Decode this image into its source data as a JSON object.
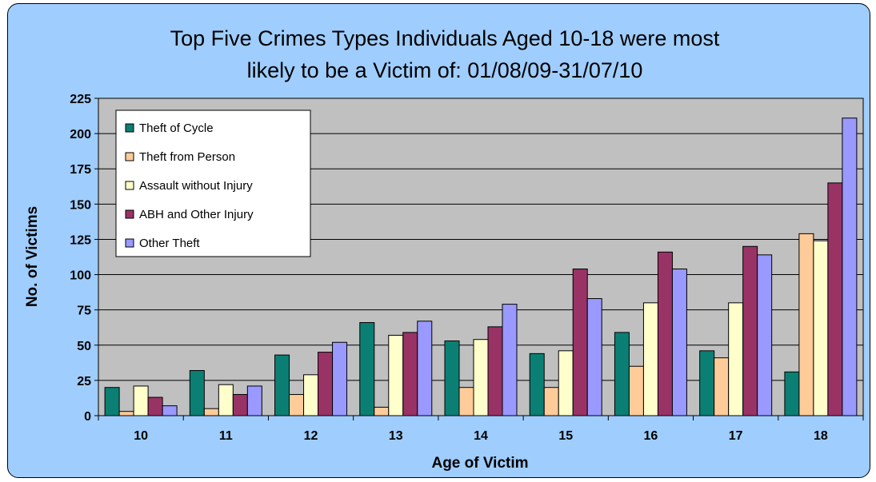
{
  "chart_data": {
    "type": "bar",
    "title_lines": [
      "Top Five Crimes Types Individuals Aged 10-18 were most",
      "likely to be a Victim of: 01/08/09-31/07/10"
    ],
    "xlabel": "Age of Victim",
    "ylabel": "No. of Victims",
    "categories": [
      "10",
      "11",
      "12",
      "13",
      "14",
      "15",
      "16",
      "17",
      "18"
    ],
    "ylim": [
      0,
      225
    ],
    "yticks": [
      "0",
      "25",
      "50",
      "75",
      "100",
      "125",
      "150",
      "175",
      "200",
      "225"
    ],
    "grid": true,
    "legend_position": "top-left",
    "series": [
      {
        "name": "Theft of Cycle",
        "color": "#0b7f73",
        "values": [
          20,
          32,
          43,
          66,
          53,
          44,
          59,
          46,
          31
        ]
      },
      {
        "name": "Theft from Person",
        "color": "#ffcc99",
        "values": [
          3,
          5,
          15,
          6,
          20,
          20,
          35,
          41,
          129
        ]
      },
      {
        "name": "Assault without Injury",
        "color": "#ffffcc",
        "values": [
          21,
          22,
          29,
          57,
          54,
          46,
          80,
          80,
          124
        ]
      },
      {
        "name": "ABH and Other Injury",
        "color": "#993366",
        "values": [
          13,
          15,
          45,
          59,
          63,
          104,
          116,
          120,
          165
        ]
      },
      {
        "name": "Other Theft",
        "color": "#9999ff",
        "values": [
          7,
          21,
          52,
          67,
          79,
          83,
          104,
          114,
          211
        ]
      }
    ],
    "plot_background": "#c0c0c0",
    "chart_background": "#9fcdfd"
  }
}
